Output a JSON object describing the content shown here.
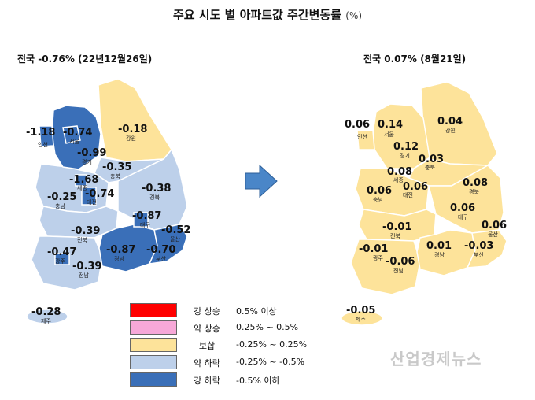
{
  "title": "주요 시도 별 아파트값 주간변동률",
  "title_unit": "(%)",
  "left_map": {
    "subtitle": "전국 -0.76% (22년12월26일)",
    "regions": [
      {
        "name": "인천",
        "value": "-1.18"
      },
      {
        "name": "서울",
        "value": "-0.74"
      },
      {
        "name": "경기",
        "value": "-0.99"
      },
      {
        "name": "강원",
        "value": "-0.18"
      },
      {
        "name": "충북",
        "value": "-0.35"
      },
      {
        "name": "세종",
        "value": "-1.68"
      },
      {
        "name": "충남",
        "value": "-0.25"
      },
      {
        "name": "대전",
        "value": "-0.74"
      },
      {
        "name": "경북",
        "value": "-0.38"
      },
      {
        "name": "대구",
        "value": "-0.87"
      },
      {
        "name": "울산",
        "value": "-0.52"
      },
      {
        "name": "전북",
        "value": "-0.39"
      },
      {
        "name": "광주",
        "value": "-0.47"
      },
      {
        "name": "경남",
        "value": "-0.87"
      },
      {
        "name": "부산",
        "value": "-0.70"
      },
      {
        "name": "전남",
        "value": "-0.39"
      },
      {
        "name": "제주",
        "value": "-0.28"
      }
    ]
  },
  "right_map": {
    "subtitle": "전국 0.07% (8월21일)",
    "regions": [
      {
        "name": "인천",
        "value": "0.06"
      },
      {
        "name": "서울",
        "value": "0.14"
      },
      {
        "name": "경기",
        "value": "0.12"
      },
      {
        "name": "강원",
        "value": "0.04"
      },
      {
        "name": "충북",
        "value": "0.03"
      },
      {
        "name": "세종",
        "value": "0.08"
      },
      {
        "name": "충남",
        "value": "0.06"
      },
      {
        "name": "대전",
        "value": "0.06"
      },
      {
        "name": "경북",
        "value": "0.08"
      },
      {
        "name": "대구",
        "value": "0.06"
      },
      {
        "name": "울산",
        "value": "0.06"
      },
      {
        "name": "전북",
        "value": "-0.01"
      },
      {
        "name": "광주",
        "value": "-0.01"
      },
      {
        "name": "경남",
        "value": "0.01"
      },
      {
        "name": "부산",
        "value": "-0.03"
      },
      {
        "name": "전남",
        "value": "-0.06"
      },
      {
        "name": "제주",
        "value": "-0.05"
      }
    ]
  },
  "legend": [
    {
      "label": "강 상승",
      "range": "0.5% 이상",
      "color": "#ff0000"
    },
    {
      "label": "약 상승",
      "range": "0.25% ~ 0.5%",
      "color": "#f7a8d8"
    },
    {
      "label": "보합",
      "range": "-0.25% ~ 0.25%",
      "color": "#fde39a"
    },
    {
      "label": "약 하락",
      "range": "-0.25% ~ -0.5%",
      "color": "#bdd0ea"
    },
    {
      "label": "강 하락",
      "range": "-0.5% 이하",
      "color": "#3a6fb8"
    }
  ],
  "arrow_color": "#4a86c8",
  "watermark": "산업경제뉴스"
}
